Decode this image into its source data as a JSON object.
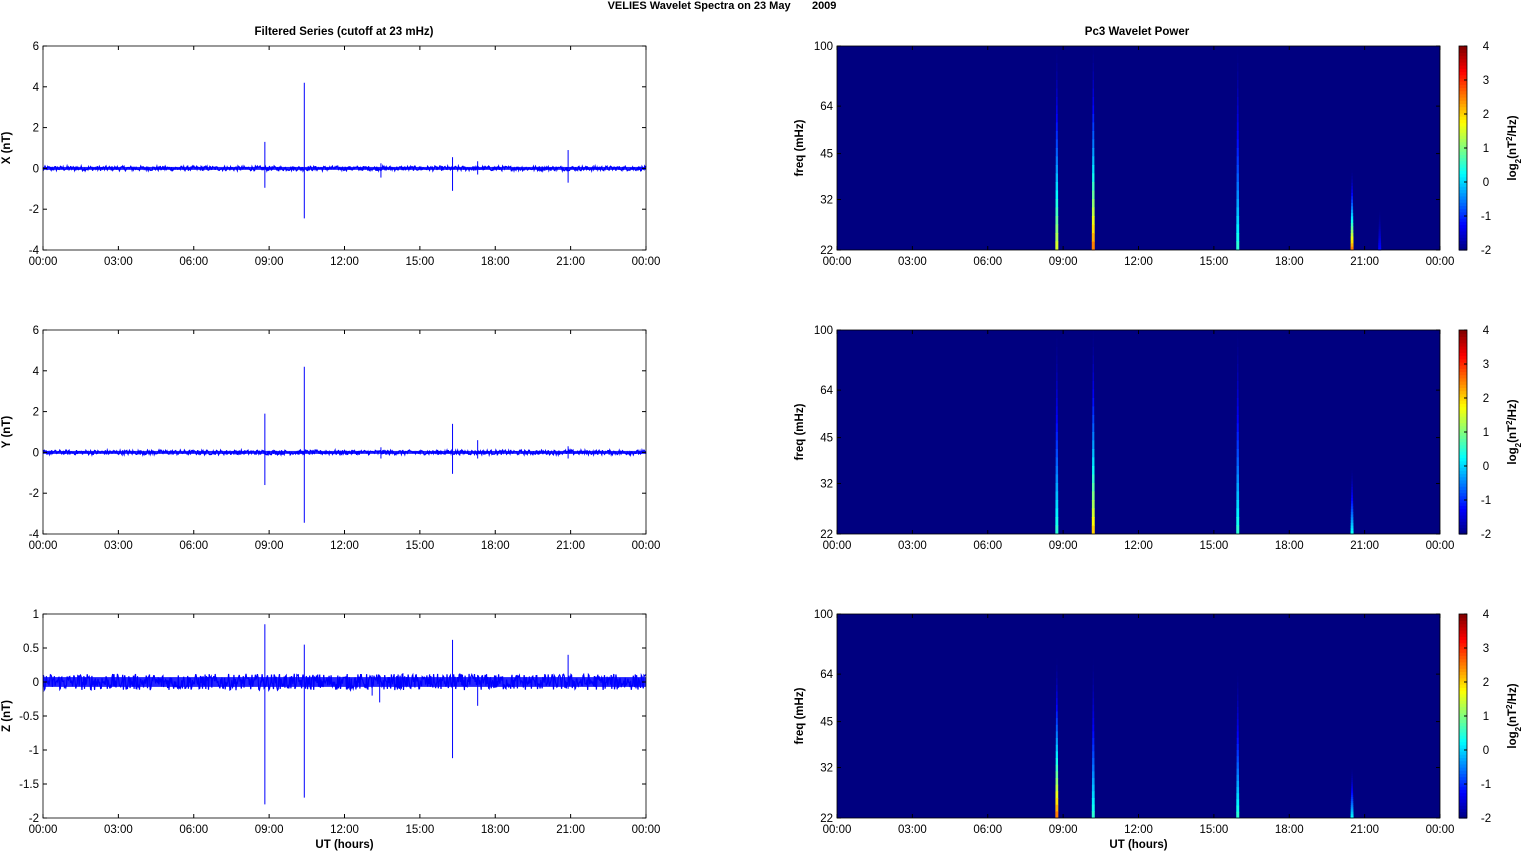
{
  "figure": {
    "title": "VELIES Wavelet Spectra on 23 May       2009",
    "left_column_title": "Filtered Series (cutoff at 23 mHz)",
    "right_column_title": "Pc3 Wavelet Power",
    "x_tick_labels": [
      "00:00",
      "03:00",
      "06:00",
      "09:00",
      "12:00",
      "15:00",
      "18:00",
      "21:00",
      "00:00"
    ],
    "x_axis_label": "UT (hours)"
  },
  "chart_data": [
    {
      "type": "line",
      "title": "Filtered Series (cutoff at 23 mHz)",
      "xlabel": "",
      "ylabel": "X (nT)",
      "xlim": [
        0,
        24
      ],
      "ylim": [
        -4,
        6
      ],
      "yticks": [
        -4,
        -2,
        0,
        2,
        4,
        6
      ],
      "grid": false,
      "color": "#0000ff",
      "noise_amplitude": 0.12,
      "spikes": [
        {
          "t": 8.83,
          "min": -0.95,
          "max": 1.3
        },
        {
          "t": 10.4,
          "min": -2.45,
          "max": 4.2
        },
        {
          "t": 13.45,
          "min": -0.45,
          "max": 0.25
        },
        {
          "t": 16.3,
          "min": -1.1,
          "max": 0.55
        },
        {
          "t": 17.3,
          "min": -0.3,
          "max": 0.35
        },
        {
          "t": 20.9,
          "min": -0.7,
          "max": 0.9
        }
      ]
    },
    {
      "type": "heatmap",
      "title": "Pc3 Wavelet Power",
      "xlabel": "",
      "ylabel": "freq (mHz)",
      "xlim": [
        0,
        24
      ],
      "ylim": [
        22,
        100
      ],
      "yscale": "log",
      "yticks": [
        22,
        32,
        45,
        64,
        100
      ],
      "colorbar_label": "log2(nT2/Hz)",
      "colorbar_ticks": [
        -2,
        -1,
        0,
        1,
        2,
        3,
        4
      ],
      "background_value": -2,
      "colormap": "jet",
      "events": [
        {
          "t": 8.75,
          "fmax": 100,
          "peak": 1.5
        },
        {
          "t": 10.2,
          "fmax": 100,
          "peak": 2.5
        },
        {
          "t": 15.95,
          "fmax": 100,
          "peak": 0.5
        },
        {
          "t": 20.5,
          "fmax": 40,
          "peak": 2.5
        },
        {
          "t": 21.6,
          "fmax": 30,
          "peak": -1.2
        }
      ]
    },
    {
      "type": "line",
      "title": "",
      "xlabel": "",
      "ylabel": "Y (nT)",
      "xlim": [
        0,
        24
      ],
      "ylim": [
        -4,
        6
      ],
      "yticks": [
        -4,
        -2,
        0,
        2,
        4,
        6
      ],
      "grid": false,
      "color": "#0000ff",
      "noise_amplitude": 0.12,
      "spikes": [
        {
          "t": 8.83,
          "min": -1.6,
          "max": 1.9
        },
        {
          "t": 10.4,
          "min": -3.45,
          "max": 4.2
        },
        {
          "t": 13.45,
          "min": -0.3,
          "max": 0.25
        },
        {
          "t": 16.3,
          "min": -1.05,
          "max": 1.4
        },
        {
          "t": 17.3,
          "min": -0.3,
          "max": 0.6
        },
        {
          "t": 20.9,
          "min": -0.3,
          "max": 0.3
        }
      ]
    },
    {
      "type": "heatmap",
      "title": "",
      "xlabel": "",
      "ylabel": "freq (mHz)",
      "xlim": [
        0,
        24
      ],
      "ylim": [
        22,
        100
      ],
      "yscale": "log",
      "yticks": [
        22,
        32,
        45,
        64,
        100
      ],
      "colorbar_label": "log2(nT2/Hz)",
      "colorbar_ticks": [
        -2,
        -1,
        0,
        1,
        2,
        3,
        4
      ],
      "background_value": -2,
      "colormap": "jet",
      "events": [
        {
          "t": 8.75,
          "fmax": 100,
          "peak": 0.5
        },
        {
          "t": 10.2,
          "fmax": 100,
          "peak": 2.0
        },
        {
          "t": 15.95,
          "fmax": 100,
          "peak": 0.5
        },
        {
          "t": 20.5,
          "fmax": 36,
          "peak": 0.3
        }
      ]
    },
    {
      "type": "line",
      "title": "",
      "xlabel": "UT (hours)",
      "ylabel": "Z (nT)",
      "xlim": [
        0,
        24
      ],
      "ylim": [
        -2,
        1
      ],
      "yticks": [
        -2,
        -1.5,
        -1,
        -0.5,
        0,
        0.5,
        1
      ],
      "grid": false,
      "color": "#0000ff",
      "noise_amplitude": 0.12,
      "spikes": [
        {
          "t": 8.83,
          "min": -1.8,
          "max": 0.85
        },
        {
          "t": 10.4,
          "min": -1.7,
          "max": 0.55
        },
        {
          "t": 13.1,
          "min": -0.2,
          "max": 0.1
        },
        {
          "t": 13.4,
          "min": -0.3,
          "max": 0.1
        },
        {
          "t": 16.3,
          "min": -1.12,
          "max": 0.62
        },
        {
          "t": 17.3,
          "min": -0.35,
          "max": 0.1
        },
        {
          "t": 20.9,
          "min": -0.1,
          "max": 0.4
        }
      ]
    },
    {
      "type": "heatmap",
      "title": "",
      "xlabel": "UT (hours)",
      "ylabel": "freq (mHz)",
      "xlim": [
        0,
        24
      ],
      "ylim": [
        22,
        100
      ],
      "yscale": "log",
      "yticks": [
        22,
        32,
        45,
        64,
        100
      ],
      "colorbar_label": "log2(nT2/Hz)",
      "colorbar_ticks": [
        -2,
        -1,
        0,
        1,
        2,
        3,
        4
      ],
      "background_value": -2,
      "colormap": "jet",
      "events": [
        {
          "t": 8.75,
          "fmax": 72,
          "peak": 2.5
        },
        {
          "t": 10.2,
          "fmax": 72,
          "peak": 0.5
        },
        {
          "t": 15.95,
          "fmax": 66,
          "peak": 0.5
        },
        {
          "t": 20.5,
          "fmax": 32,
          "peak": 0.2
        }
      ]
    }
  ]
}
